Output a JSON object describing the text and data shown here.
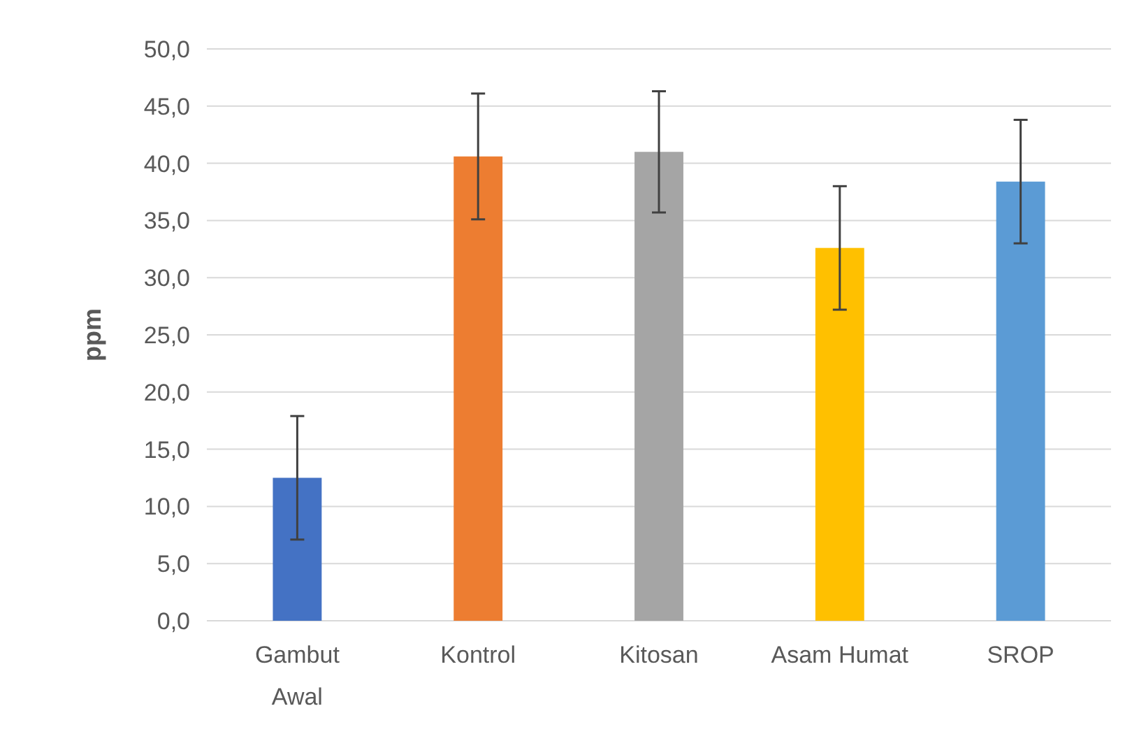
{
  "chart_data": {
    "type": "bar",
    "ylabel": "ppm",
    "categories": [
      "Gambut\nAwal",
      "Kontrol",
      "Kitosan",
      "Asam Humat",
      "SROP"
    ],
    "values": [
      12.5,
      40.6,
      41.0,
      32.6,
      38.4
    ],
    "errors": [
      5.4,
      5.5,
      5.3,
      5.4,
      5.4
    ],
    "colors": [
      "#4472c4",
      "#ed7d31",
      "#a5a5a5",
      "#ffc000",
      "#5b9bd5"
    ],
    "ylim": [
      0,
      50
    ],
    "yticks": [
      {
        "value": 0,
        "label": "0,0"
      },
      {
        "value": 5,
        "label": "5,0"
      },
      {
        "value": 10,
        "label": "10,0"
      },
      {
        "value": 15,
        "label": "15,0"
      },
      {
        "value": 20,
        "label": "20,0"
      },
      {
        "value": 25,
        "label": "25,0"
      },
      {
        "value": 30,
        "label": "30,0"
      },
      {
        "value": 35,
        "label": "35,0"
      },
      {
        "value": 40,
        "label": "40,0"
      },
      {
        "value": 45,
        "label": "45,0"
      },
      {
        "value": 50,
        "label": "50,0"
      }
    ],
    "grid": "y"
  }
}
